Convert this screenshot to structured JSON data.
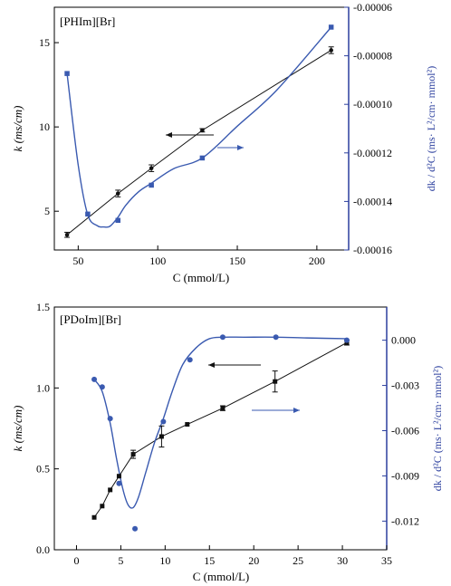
{
  "chart_data": [
    {
      "type": "line",
      "annotation": "[PHIm][Br]",
      "xlabel": "C (mmol/L)",
      "ylabel": "k (ms/cm)",
      "y2label": "dk / d²C (ms· L²/cm· mmol²)",
      "xlim": [
        35,
        220
      ],
      "ylim": [
        2.7,
        17.1
      ],
      "y2lim": [
        -0.00016,
        -6e-05
      ],
      "xticks": [
        50,
        100,
        150,
        200
      ],
      "xtick_labels": [
        "50",
        "100",
        "150",
        "200"
      ],
      "yticks": [
        5,
        10,
        15
      ],
      "ytick_labels": [
        "5",
        "10",
        "15"
      ],
      "y2ticks": [
        -6e-05,
        -8e-05,
        -0.0001,
        -0.00012,
        -0.00014,
        -0.00016
      ],
      "y2tick_labels": [
        "-0.00006",
        "-0.00008",
        "-0.00010",
        "-0.00012",
        "-0.00014",
        "-0.00016"
      ],
      "colors": {
        "k": "#111111",
        "derivative": "#3a5ab0",
        "axis_right": "#2b3f9e"
      },
      "series": [
        {
          "role": "k",
          "axis": "left",
          "marker": "circle",
          "x": [
            43,
            75,
            96,
            128,
            209
          ],
          "values": [
            3.6,
            6.05,
            7.55,
            9.8,
            14.55
          ],
          "error": [
            0.15,
            0.2,
            0.2,
            0.1,
            0.2
          ],
          "line": "straight"
        },
        {
          "role": "derivative",
          "axis": "right",
          "marker": "square",
          "x": [
            43,
            56,
            75,
            96,
            128,
            209
          ],
          "values": [
            -8.73e-05,
            -0.0001452,
            -0.0001478,
            -0.0001333,
            -0.0001221,
            -6.82e-05
          ],
          "line": "smooth",
          "fit": {
            "x": [
              43,
              50,
              56,
              62,
              66,
              70,
              75,
              80,
              88,
              96,
              110,
              128,
              150,
              175,
              209
            ],
            "y": [
              -8.73e-05,
              -0.000125,
              -0.0001455,
              -0.00015,
              -0.0001505,
              -0.0001502,
              -0.0001465,
              -0.0001415,
              -0.000136,
              -0.0001325,
              -0.0001265,
              -0.0001221,
              -0.000109,
              -9.4e-05,
              -6.82e-05
            ]
          }
        }
      ],
      "arrows": [
        {
          "to": "left",
          "color": "#111111"
        },
        {
          "to": "right",
          "color": "#3a5ab0"
        }
      ]
    },
    {
      "type": "line",
      "annotation": "[PDoIm][Br]",
      "xlabel": "C (mmol/L)",
      "ylabel": "k (ms/cm)",
      "y2label": "dk / d²C (ms· L²/cm· mmol²)",
      "xlim": [
        -2.5,
        35
      ],
      "ylim": [
        0,
        1.5
      ],
      "y2lim": [
        -0.0139,
        0.0022
      ],
      "xticks": [
        0,
        5,
        10,
        15,
        20,
        25,
        30,
        35
      ],
      "xtick_labels": [
        "0",
        "5",
        "10",
        "15",
        "20",
        "25",
        "30",
        "35"
      ],
      "yticks": [
        0,
        0.5,
        1.0,
        1.5
      ],
      "ytick_labels": [
        "0.0",
        "0.5",
        "1.0",
        "1.5"
      ],
      "y2ticks": [
        0,
        -0.003,
        -0.006,
        -0.009,
        -0.012
      ],
      "y2tick_labels": [
        "0.000",
        "-0.003",
        "-0.006",
        "-0.009",
        "-0.012"
      ],
      "colors": {
        "k": "#111111",
        "derivative": "#3a5ab0",
        "axis_right": "#2b3f9e"
      },
      "series": [
        {
          "role": "k",
          "axis": "left",
          "marker": "square",
          "x": [
            2.0,
            2.9,
            3.8,
            4.8,
            6.4,
            9.6,
            12.5,
            16.5,
            22.4,
            30.5
          ],
          "values": [
            0.2,
            0.27,
            0.37,
            0.455,
            0.59,
            0.7,
            0.775,
            0.875,
            1.04,
            1.28
          ],
          "error": [
            0,
            0,
            0,
            0,
            0.025,
            0.065,
            0,
            0.015,
            0.065,
            0.015
          ],
          "line": "straight"
        },
        {
          "role": "derivative",
          "axis": "right",
          "marker": "circle",
          "x": [
            2.0,
            2.9,
            3.8,
            4.8,
            6.6,
            9.8,
            12.8,
            16.5,
            22.5,
            30.5
          ],
          "values": [
            -0.0026,
            -0.0031,
            -0.0052,
            -0.0095,
            -0.0125,
            -0.0054,
            -0.0013,
            0.0002,
            0.0002,
            0.0
          ],
          "line": "smooth",
          "fit": {
            "x": [
              2.0,
              2.9,
              3.8,
              4.5,
              5.2,
              5.8,
              6.4,
              7.0,
              7.8,
              8.8,
              9.8,
              10.8,
              12.0,
              13.5,
              15.0,
              16.5,
              19.0,
              22.5,
              26.0,
              30.5
            ],
            "y": [
              -0.0026,
              -0.0034,
              -0.0055,
              -0.0078,
              -0.0098,
              -0.0109,
              -0.0111,
              -0.0104,
              -0.0088,
              -0.0068,
              -0.0052,
              -0.0034,
              -0.0016,
              -0.0005,
              0.0001,
              0.0002,
              0.0002,
              0.0002,
              0.00015,
              0.0001
            ]
          }
        }
      ],
      "arrows": [
        {
          "to": "left",
          "color": "#111111"
        },
        {
          "to": "right",
          "color": "#3a5ab0"
        }
      ]
    }
  ]
}
